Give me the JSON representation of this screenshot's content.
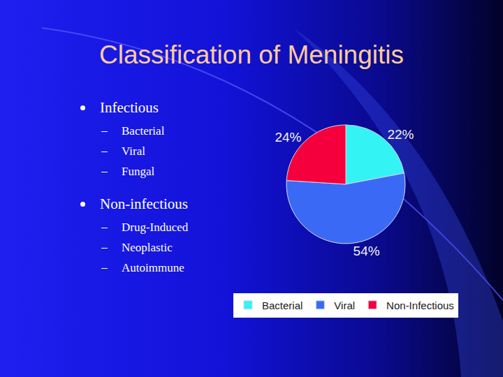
{
  "slide": {
    "title": "Classification of Meningitis",
    "bullets": [
      {
        "text": "Infectious",
        "items": [
          "Bacterial",
          "Viral",
          "Fungal"
        ]
      },
      {
        "text": "Non-infectious",
        "items": [
          "Drug-Induced",
          "Neoplastic",
          "Autoimmune"
        ]
      }
    ]
  },
  "chart_data": {
    "type": "pie",
    "categories": [
      "Bacterial",
      "Viral",
      "Non-Infectious"
    ],
    "values": [
      22,
      54,
      24
    ],
    "value_labels": [
      "22%",
      "54%",
      "24%"
    ],
    "colors": [
      "#33f3f5",
      "#3a6af5",
      "#f5003d"
    ],
    "data_labels": true,
    "legend": "bottom"
  }
}
